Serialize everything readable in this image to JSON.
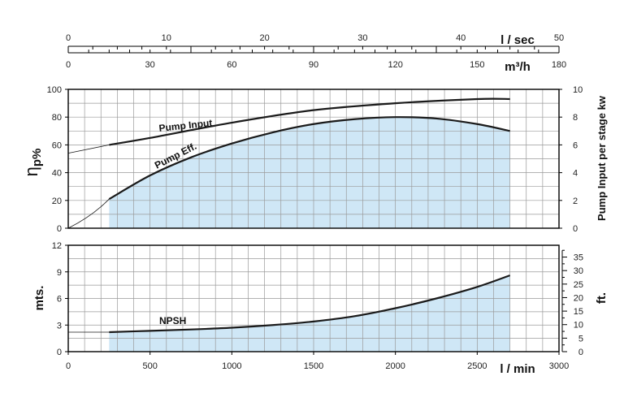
{
  "chart_data": [
    {
      "type": "area",
      "name_in_chart": "top",
      "top_axis_flow_lsec": {
        "ticks": [
          "0",
          "10",
          "20",
          "30",
          "40",
          "50"
        ],
        "unit_label": "l / sec",
        "range": [
          0,
          50
        ]
      },
      "top_axis_flow_m3h": {
        "ticks": [
          "0",
          "30",
          "60",
          "90",
          "120",
          "150",
          "180"
        ],
        "unit_label": "m³/h",
        "range": [
          0,
          180
        ]
      },
      "left_axis": {
        "label": "ηp%",
        "range": [
          0,
          100
        ],
        "ticks": [
          "0",
          "20",
          "40",
          "60",
          "80",
          "100"
        ]
      },
      "right_axis": {
        "label": "Pump Input per stage kw",
        "range": [
          0,
          10
        ],
        "ticks": [
          "0",
          "2",
          "4",
          "6",
          "8",
          "10"
        ]
      },
      "x_range_lmin": [
        0,
        3000
      ],
      "series": [
        {
          "name": "Pump Input",
          "axis": "right",
          "x": [
            250,
            500,
            1000,
            1500,
            2000,
            2500,
            2700
          ],
          "y": [
            6.0,
            6.5,
            7.6,
            8.5,
            9.0,
            9.3,
            9.3
          ],
          "extrapolated_start": {
            "x": 0,
            "y": 5.4
          }
        },
        {
          "name": "Pump Eff.",
          "axis": "left",
          "x": [
            250,
            500,
            750,
            1000,
            1250,
            1500,
            1750,
            2000,
            2250,
            2500,
            2700
          ],
          "y": [
            21,
            38,
            51,
            61,
            69,
            75,
            78.5,
            80,
            79,
            75,
            70
          ],
          "extrapolated_start": {
            "x": 0,
            "y": 0
          }
        }
      ]
    },
    {
      "type": "area",
      "name_in_chart": "bottom",
      "bottom_axis": {
        "ticks": [
          "0",
          "500",
          "1000",
          "1500",
          "2000",
          "2500",
          "3000"
        ],
        "unit_label": "l / min",
        "range": [
          0,
          3000
        ]
      },
      "left_axis": {
        "label": "mts.",
        "range": [
          0,
          12
        ],
        "ticks": [
          "0",
          "3",
          "6",
          "9",
          "12"
        ]
      },
      "right_axis": {
        "label": "ft.",
        "range": [
          0,
          39.37
        ],
        "ticks": [
          "0",
          "5",
          "10",
          "15",
          "20",
          "25",
          "30",
          "35"
        ]
      },
      "series": [
        {
          "name": "NPSH",
          "axis": "left",
          "x": [
            250,
            500,
            750,
            1000,
            1250,
            1500,
            1750,
            2000,
            2250,
            2500,
            2700
          ],
          "y": [
            2.2,
            2.35,
            2.5,
            2.7,
            3.0,
            3.4,
            4.0,
            4.9,
            6.0,
            7.3,
            8.6
          ],
          "extrapolated_start": {
            "x": 0,
            "y": 2.2
          }
        }
      ]
    }
  ],
  "colors": {
    "fill": "#cfe7f6",
    "grid": "#9a9a9a",
    "curve": "#1a1a1a",
    "frame": "#000000"
  }
}
